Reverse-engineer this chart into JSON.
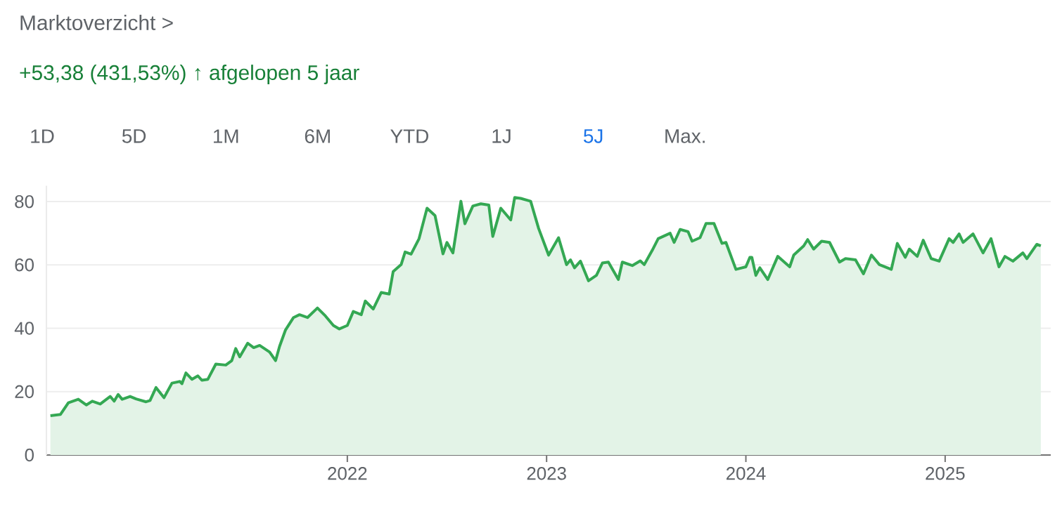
{
  "chart_data": {
    "type": "area",
    "title": "Marktoverzicht >",
    "subtitle": "+53,38 (431,53%) ↑ afgelopen 5 jaar",
    "annotations": [
      "1D",
      "5D",
      "1M",
      "6M",
      "YTD",
      "1J",
      "5J",
      "Max."
    ],
    "color": "#34a853",
    "x": [
      2020.51,
      2020.56,
      2020.6,
      2020.65,
      2020.69,
      2020.72,
      2020.76,
      2020.81,
      2020.83,
      2020.85,
      2020.87,
      2020.91,
      2020.94,
      2020.99,
      2021.01,
      2021.04,
      2021.08,
      2021.12,
      2021.16,
      2021.17,
      2021.19,
      2021.22,
      2021.25,
      2021.27,
      2021.3,
      2021.34,
      2021.39,
      2021.42,
      2021.44,
      2021.46,
      2021.5,
      2021.53,
      2021.56,
      2021.61,
      2021.64,
      2021.66,
      2021.69,
      2021.73,
      2021.76,
      2021.8,
      2021.85,
      2021.89,
      2021.93,
      2021.96,
      2022.0,
      2022.03,
      2022.07,
      2022.09,
      2022.13,
      2022.17,
      2022.21,
      2022.23,
      2022.27,
      2022.29,
      2022.32,
      2022.36,
      2022.4,
      2022.44,
      2022.48,
      2022.5,
      2022.53,
      2022.57,
      2022.59,
      2022.63,
      2022.67,
      2022.71,
      2022.73,
      2022.77,
      2022.82,
      2022.84,
      2022.87,
      2022.92,
      2022.96,
      2023.01,
      2023.06,
      2023.1,
      2023.12,
      2023.14,
      2023.17,
      2023.21,
      2023.25,
      2023.28,
      2023.31,
      2023.36,
      2023.38,
      2023.43,
      2023.47,
      2023.49,
      2023.53,
      2023.56,
      2023.62,
      2023.64,
      2023.67,
      2023.71,
      2023.73,
      2023.77,
      2023.8,
      2023.84,
      2023.88,
      2023.9,
      2023.95,
      2024.0,
      2024.02,
      2024.03,
      2024.05,
      2024.07,
      2024.11,
      2024.16,
      2024.18,
      2024.22,
      2024.24,
      2024.29,
      2024.31,
      2024.34,
      2024.38,
      2024.42,
      2024.47,
      2024.5,
      2024.55,
      2024.59,
      2024.63,
      2024.67,
      2024.73,
      2024.76,
      2024.8,
      2024.82,
      2024.86,
      2024.89,
      2024.93,
      2024.97,
      2025.02,
      2025.04,
      2025.07,
      2025.09,
      2025.14,
      2025.19,
      2025.23,
      2025.27,
      2025.3,
      2025.34,
      2025.39,
      2025.41,
      2025.46,
      2025.48
    ],
    "values": [
      12.4,
      12.8,
      16.5,
      17.6,
      15.8,
      17,
      16.1,
      18.5,
      17,
      19.1,
      17.6,
      18.5,
      17.7,
      16.8,
      17.2,
      21.3,
      18.1,
      22.7,
      23.2,
      22.5,
      25.9,
      23.9,
      25,
      23.6,
      23.9,
      28.7,
      28.4,
      29.8,
      33.6,
      31,
      35.3,
      33.9,
      34.6,
      32.5,
      29.8,
      34.3,
      39.5,
      43.4,
      44.3,
      43.4,
      46.4,
      43.9,
      40.9,
      39.8,
      40.9,
      45.3,
      44.3,
      48.6,
      46.1,
      51.3,
      50.8,
      57.9,
      60.1,
      64.1,
      63.4,
      68.3,
      77.9,
      75.6,
      63.5,
      67.1,
      63.8,
      80.1,
      73,
      78.6,
      79.3,
      78.9,
      69,
      77.9,
      74.2,
      81.3,
      81,
      80.1,
      71.5,
      63.1,
      68.6,
      60.1,
      61.6,
      59.1,
      61.2,
      55,
      56.7,
      60.6,
      60.9,
      55.4,
      60.9,
      59.8,
      61.3,
      60.1,
      64.6,
      68.3,
      70,
      67.1,
      71.2,
      70.5,
      67.5,
      68.6,
      73.1,
      73.1,
      66.8,
      67.1,
      58.6,
      59.4,
      62.4,
      62.4,
      56.7,
      59.1,
      55.4,
      62.7,
      61.6,
      59.4,
      63.1,
      66,
      68,
      65,
      67.5,
      67.1,
      60.9,
      62,
      61.6,
      57.2,
      63.1,
      60.1,
      58.6,
      66.8,
      62.4,
      65,
      62.7,
      67.8,
      62,
      61.2,
      68.3,
      67.1,
      69.8,
      67.1,
      69.8,
      63.8,
      68.3,
      59.4,
      62.7,
      61.2,
      63.8,
      62,
      66.5,
      66
    ],
    "xlim": [
      2020.49,
      2025.53
    ],
    "ylim": [
      0,
      85
    ],
    "xticks": [
      2022,
      2023,
      2024,
      2025
    ],
    "yticks": [
      0,
      20,
      40,
      60,
      80
    ],
    "grid": "y"
  }
}
